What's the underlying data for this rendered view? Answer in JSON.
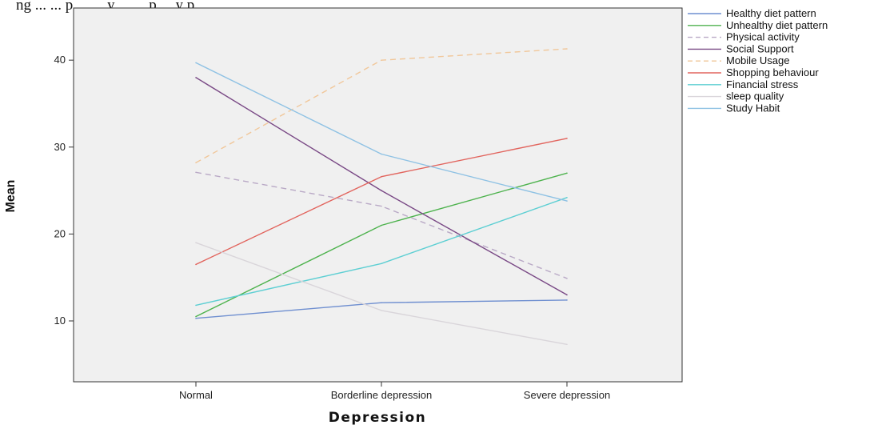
{
  "caption": "ng ... ... p ... ... y ... ... p ... y p",
  "chart_data": {
    "type": "line",
    "title": "",
    "xlabel": "Depression",
    "ylabel": "Mean",
    "categories": [
      "Normal",
      "Borderline depression",
      "Severe depression"
    ],
    "ylim": [
      3,
      46
    ],
    "yticks": [
      10,
      20,
      30,
      40
    ],
    "grid": false,
    "legend_position": "top-right",
    "series": [
      {
        "name": "Healthy diet pattern",
        "values": [
          10.3,
          12.1,
          12.4
        ],
        "color": "#6f8fd0",
        "dash": "solid"
      },
      {
        "name": "Unhealthy diet pattern",
        "values": [
          10.5,
          21.0,
          27.0
        ],
        "color": "#4fb34f",
        "dash": "solid"
      },
      {
        "name": "Physical activity",
        "values": [
          27.1,
          23.2,
          14.9
        ],
        "color": "#b9a9c6",
        "dash": "dashed"
      },
      {
        "name": "Social Support",
        "values": [
          38.0,
          25.0,
          13.0
        ],
        "color": "#7a4a86",
        "dash": "solid"
      },
      {
        "name": "Mobile Usage",
        "values": [
          28.2,
          40.0,
          41.3
        ],
        "color": "#f1c79a",
        "dash": "dashed"
      },
      {
        "name": "Shopping behaviour",
        "values": [
          16.5,
          26.6,
          31.0
        ],
        "color": "#e2655e",
        "dash": "solid"
      },
      {
        "name": "Financial stress",
        "values": [
          11.8,
          16.6,
          24.2
        ],
        "color": "#5ecfd3",
        "dash": "solid"
      },
      {
        "name": "sleep quality",
        "values": [
          19.0,
          11.2,
          7.3
        ],
        "color": "#d9d5da",
        "dash": "solid"
      },
      {
        "name": "Study Habit",
        "values": [
          39.7,
          29.2,
          23.8
        ],
        "color": "#8fc2e4",
        "dash": "solid"
      }
    ]
  }
}
